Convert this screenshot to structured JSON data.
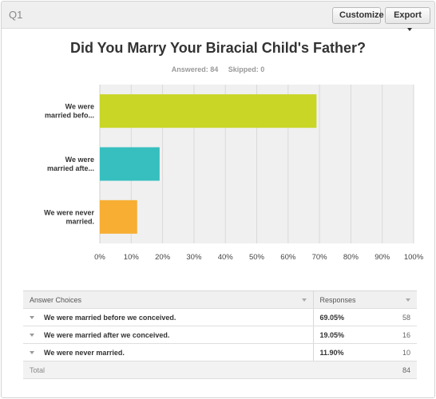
{
  "header": {
    "qnum": "Q1",
    "customize_label": "Customize",
    "export_label": "Export"
  },
  "title": "Did You Marry Your Biracial Child's Father?",
  "stats": {
    "answered": "Answered: 84",
    "skipped": "Skipped: 0"
  },
  "chart_data": {
    "type": "bar",
    "orientation": "horizontal",
    "categories": [
      "We were married befo...",
      "We were married afte...",
      "We were never married."
    ],
    "category_lines": [
      [
        "We were",
        "married befo..."
      ],
      [
        "We were",
        "married afte..."
      ],
      [
        "We were never",
        "married."
      ]
    ],
    "values": [
      69.05,
      19.05,
      11.9
    ],
    "colors": [
      "#c9d626",
      "#37bfbf",
      "#f7ae33"
    ],
    "xlim": [
      0,
      100
    ],
    "ticks": [
      "0%",
      "10%",
      "20%",
      "30%",
      "40%",
      "50%",
      "60%",
      "70%",
      "80%",
      "90%",
      "100%"
    ],
    "grid": true
  },
  "table": {
    "headers": {
      "choices": "Answer Choices",
      "responses": "Responses"
    },
    "rows": [
      {
        "choice": "We were married before we conceived.",
        "pct": "69.05%",
        "count": "58"
      },
      {
        "choice": "We were married after we conceived.",
        "pct": "19.05%",
        "count": "16"
      },
      {
        "choice": "We were never married.",
        "pct": "11.90%",
        "count": "10"
      }
    ],
    "total_label": "Total",
    "total_value": "84"
  }
}
